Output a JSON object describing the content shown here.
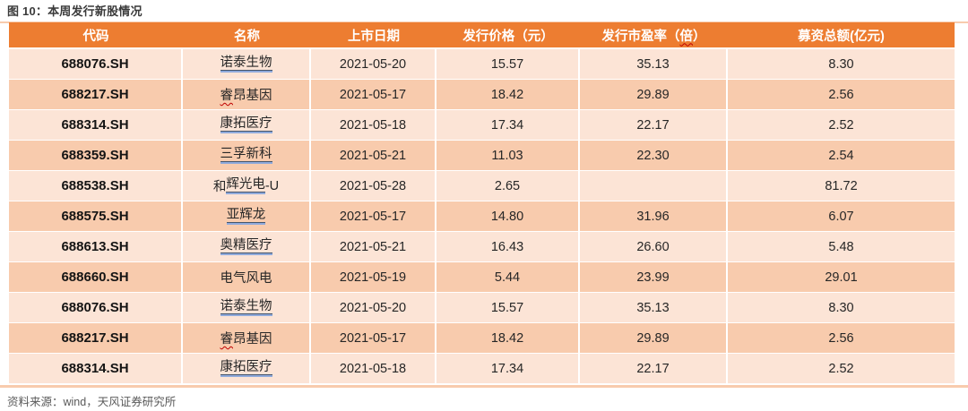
{
  "title": "图 10：本周发行新股情况",
  "source": "资料来源：wind，天风证券研究所",
  "colors": {
    "header_bg": "#ED7D31",
    "row_light": "#FCE4D6",
    "row_dark": "#F8CBAD",
    "divider": "#F8CBAD",
    "link_underline_top": "#44546A",
    "link_underline_bottom": "#8FAADC",
    "spellcheck_red": "#C00000"
  },
  "table": {
    "headers": [
      {
        "segments": [
          {
            "t": "代码"
          }
        ]
      },
      {
        "segments": [
          {
            "t": "名称"
          }
        ]
      },
      {
        "segments": [
          {
            "t": "上市日期"
          }
        ]
      },
      {
        "segments": [
          {
            "t": "发行价格（元）"
          }
        ]
      },
      {
        "segments": [
          {
            "t": "发行市盈率（"
          },
          {
            "t": "倍",
            "sq": true
          },
          {
            "t": "）"
          }
        ]
      },
      {
        "segments": [
          {
            "t": "募资总额(亿元)"
          }
        ]
      }
    ],
    "rows": [
      {
        "code": "688076.SH",
        "name": [
          {
            "t": "诺泰生物",
            "u": true
          }
        ],
        "date": "2021-05-20",
        "price": "15.57",
        "pe": "35.13",
        "amount": "8.30"
      },
      {
        "code": "688217.SH",
        "name": [
          {
            "t": "睿",
            "sq": true
          },
          {
            "t": "昂基因"
          }
        ],
        "date": "2021-05-17",
        "price": "18.42",
        "pe": "29.89",
        "amount": "2.56"
      },
      {
        "code": "688314.SH",
        "name": [
          {
            "t": "康拓医疗",
            "u": true
          }
        ],
        "date": "2021-05-18",
        "price": "17.34",
        "pe": "22.17",
        "amount": "2.52"
      },
      {
        "code": "688359.SH",
        "name": [
          {
            "t": "三孚新科",
            "u": true
          }
        ],
        "date": "2021-05-21",
        "price": "11.03",
        "pe": "22.30",
        "amount": "2.54"
      },
      {
        "code": "688538.SH",
        "name": [
          {
            "t": "和"
          },
          {
            "t": "辉光电",
            "u": true
          },
          {
            "t": "-U"
          }
        ],
        "date": "2021-05-28",
        "price": "2.65",
        "pe": "",
        "amount": "81.72"
      },
      {
        "code": "688575.SH",
        "name": [
          {
            "t": "亚辉龙",
            "u": true
          }
        ],
        "date": "2021-05-17",
        "price": "14.80",
        "pe": "31.96",
        "amount": "6.07"
      },
      {
        "code": "688613.SH",
        "name": [
          {
            "t": "奥精医疗",
            "u": true
          }
        ],
        "date": "2021-05-21",
        "price": "16.43",
        "pe": "26.60",
        "amount": "5.48"
      },
      {
        "code": "688660.SH",
        "name": [
          {
            "t": "电气风电"
          }
        ],
        "date": "2021-05-19",
        "price": "5.44",
        "pe": "23.99",
        "amount": "29.01"
      },
      {
        "code": "688076.SH",
        "name": [
          {
            "t": "诺泰生物",
            "u": true
          }
        ],
        "date": "2021-05-20",
        "price": "15.57",
        "pe": "35.13",
        "amount": "8.30"
      },
      {
        "code": "688217.SH",
        "name": [
          {
            "t": "睿",
            "sq": true
          },
          {
            "t": "昂基因"
          }
        ],
        "date": "2021-05-17",
        "price": "18.42",
        "pe": "29.89",
        "amount": "2.56"
      },
      {
        "code": "688314.SH",
        "name": [
          {
            "t": "康拓医疗",
            "u": true
          }
        ],
        "date": "2021-05-18",
        "price": "17.34",
        "pe": "22.17",
        "amount": "2.52"
      }
    ]
  }
}
